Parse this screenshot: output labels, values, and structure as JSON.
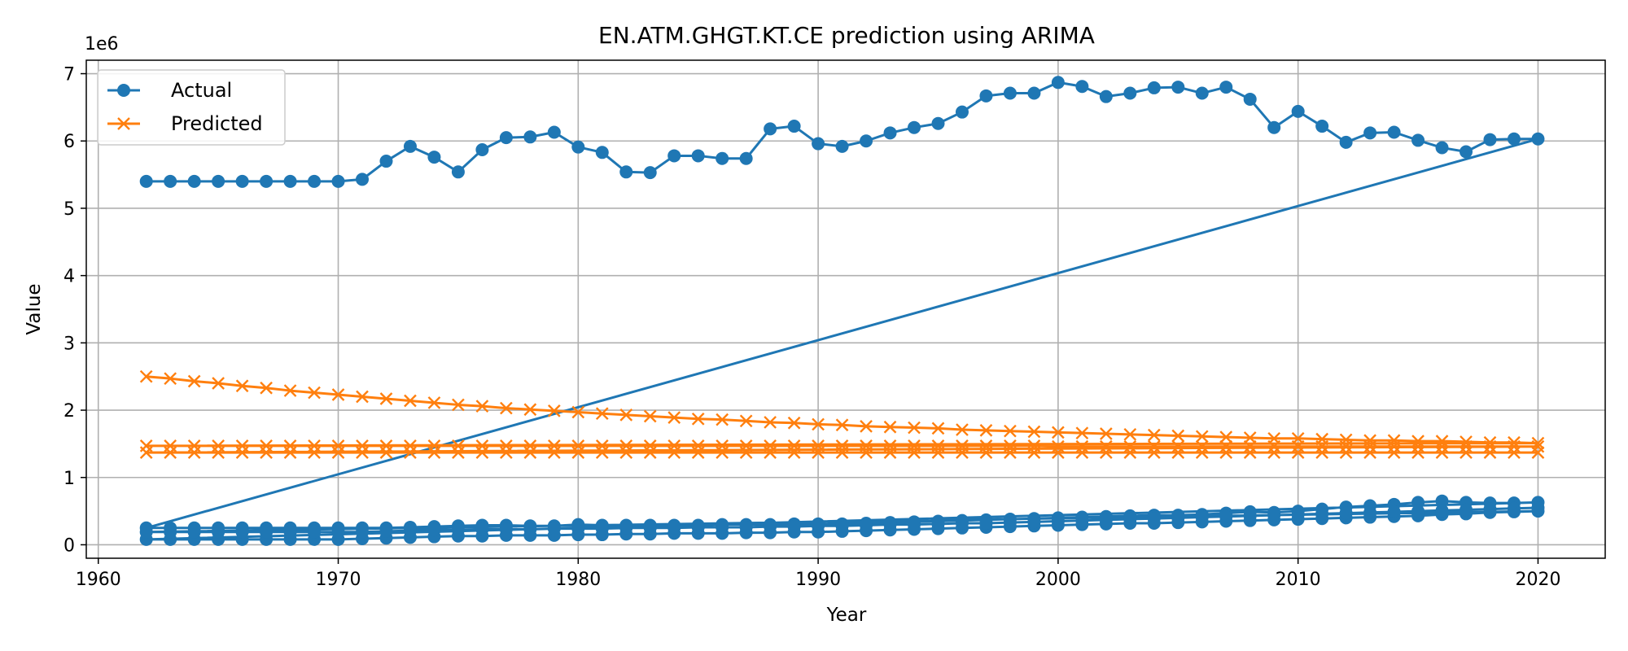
{
  "chart_data": {
    "type": "line",
    "title": "EN.ATM.GHGT.KT.CE prediction using ARIMA",
    "xlabel": "Year",
    "ylabel": "Value",
    "y_offset_label": "1e6",
    "xlim": [
      1959.5,
      2022.8
    ],
    "ylim": [
      -0.2,
      7.2
    ],
    "y_scale_note": "values in units of 1e6",
    "x_ticks": [
      1960,
      1970,
      1980,
      1990,
      2000,
      2010,
      2020
    ],
    "y_ticks": [
      0,
      1,
      2,
      3,
      4,
      5,
      6,
      7
    ],
    "grid": true,
    "legend_position": "upper-left",
    "colors": {
      "actual": "#1f77b4",
      "predicted": "#ff7f0e"
    },
    "series": [
      {
        "name": "Actual",
        "marker": "circle",
        "x": [
          1962,
          1963,
          1964,
          1965,
          1966,
          1967,
          1968,
          1969,
          1970,
          1971,
          1972,
          1973,
          1974,
          1975,
          1976,
          1977,
          1978,
          1979,
          1980,
          1981,
          1982,
          1983,
          1984,
          1985,
          1986,
          1987,
          1988,
          1989,
          1990,
          1991,
          1992,
          1993,
          1994,
          1995,
          1996,
          1997,
          1998,
          1999,
          2000,
          2001,
          2002,
          2003,
          2004,
          2005,
          2006,
          2007,
          2008,
          2009,
          2010,
          2011,
          2012,
          2013,
          2014,
          2015,
          2016,
          2017,
          2018,
          2019,
          2020,
          1962,
          1963,
          1964,
          1965,
          1966,
          1967,
          1968,
          1969,
          1970,
          1971,
          1972,
          1973,
          1974,
          1975,
          1976,
          1977,
          1978,
          1979,
          1980,
          1981,
          1982,
          1983,
          1984,
          1985,
          1986,
          1987,
          1988,
          1989,
          1990,
          1991,
          1992,
          1993,
          1994,
          1995,
          1996,
          1997,
          1998,
          1999,
          2000,
          2001,
          2002,
          2003,
          2004,
          2005,
          2006,
          2007,
          2008,
          2009,
          2010,
          2011,
          2012,
          2013,
          2014,
          2015,
          2016,
          2017,
          2018,
          2019,
          2020,
          1962,
          1963,
          1964,
          1965,
          1966,
          1967,
          1968,
          1969,
          1970,
          1971,
          1972,
          1973,
          1974,
          1975,
          1976,
          1977,
          1978,
          1979,
          1980,
          1981,
          1982,
          1983,
          1984,
          1985,
          1986,
          1987,
          1988,
          1989,
          1990,
          1991,
          1992,
          1993,
          1994,
          1995,
          1996,
          1997,
          1998,
          1999,
          2000,
          2001,
          2002,
          2003,
          2004,
          2005,
          2006,
          2007,
          2008,
          2009,
          2010,
          2011,
          2012,
          2013,
          2014,
          2015,
          2016,
          2017,
          2018,
          2019,
          2020,
          1962,
          1963,
          1964,
          1965,
          1966,
          1967,
          1968,
          1969,
          1970,
          1971,
          1972,
          1973,
          1974,
          1975,
          1976,
          1977,
          1978,
          1979,
          1980,
          1981,
          1982,
          1983,
          1984,
          1985,
          1986,
          1987,
          1988,
          1989,
          1990,
          1991,
          1992,
          1993,
          1994,
          1995,
          1996,
          1997,
          1998,
          1999,
          2000,
          2001,
          2002,
          2003,
          2004,
          2005,
          2006,
          2007,
          2008,
          2009,
          2010,
          2011,
          2012,
          2013,
          2014,
          2015,
          2016,
          2017,
          2018,
          2019,
          2020
        ],
        "y": [
          5.4,
          5.4,
          5.4,
          5.4,
          5.4,
          5.4,
          5.4,
          5.4,
          5.4,
          5.43,
          5.7,
          5.92,
          5.76,
          5.54,
          5.87,
          6.05,
          6.06,
          6.13,
          5.91,
          5.83,
          5.54,
          5.53,
          5.78,
          5.78,
          5.74,
          5.74,
          6.18,
          6.22,
          5.96,
          5.92,
          6.0,
          6.12,
          6.2,
          6.26,
          6.43,
          6.67,
          6.71,
          6.71,
          6.87,
          6.81,
          6.66,
          6.71,
          6.79,
          6.8,
          6.71,
          6.8,
          6.62,
          6.2,
          6.44,
          6.22,
          5.98,
          6.12,
          6.13,
          6.01,
          5.9,
          5.84,
          6.02,
          6.03,
          6.03,
          0.25,
          0.25,
          0.25,
          0.25,
          0.25,
          0.25,
          0.25,
          0.25,
          0.25,
          0.25,
          0.25,
          0.26,
          0.27,
          0.28,
          0.29,
          0.29,
          0.28,
          0.28,
          0.3,
          0.29,
          0.29,
          0.29,
          0.29,
          0.29,
          0.3,
          0.3,
          0.3,
          0.31,
          0.31,
          0.31,
          0.32,
          0.33,
          0.34,
          0.35,
          0.36,
          0.37,
          0.38,
          0.39,
          0.4,
          0.41,
          0.42,
          0.43,
          0.44,
          0.44,
          0.45,
          0.47,
          0.49,
          0.48,
          0.5,
          0.53,
          0.56,
          0.58,
          0.6,
          0.63,
          0.65,
          0.63,
          0.62,
          0.62,
          0.63,
          0.08,
          0.08,
          0.08,
          0.08,
          0.08,
          0.08,
          0.08,
          0.08,
          0.08,
          0.09,
          0.1,
          0.11,
          0.12,
          0.13,
          0.13,
          0.14,
          0.14,
          0.14,
          0.15,
          0.15,
          0.16,
          0.16,
          0.17,
          0.17,
          0.17,
          0.18,
          0.18,
          0.19,
          0.19,
          0.2,
          0.21,
          0.22,
          0.23,
          0.24,
          0.25,
          0.26,
          0.27,
          0.28,
          0.29,
          0.3,
          0.31,
          0.32,
          0.32,
          0.33,
          0.34,
          0.35,
          0.36,
          0.37,
          0.38,
          0.39,
          0.4,
          0.41,
          0.42,
          0.43,
          0.45,
          0.46,
          0.48,
          0.49,
          0.5,
          0.19,
          0.19,
          0.19,
          0.19,
          0.19,
          0.19,
          0.19,
          0.19,
          0.19,
          0.19,
          0.2,
          0.21,
          0.22,
          0.22,
          0.23,
          0.23,
          0.23,
          0.24,
          0.24,
          0.24,
          0.25,
          0.25,
          0.25,
          0.26,
          0.26,
          0.26,
          0.27,
          0.27,
          0.28,
          0.28,
          0.29,
          0.3,
          0.3,
          0.31,
          0.32,
          0.32,
          0.33,
          0.34,
          0.35,
          0.36,
          0.37,
          0.38,
          0.39,
          0.4,
          0.41,
          0.42,
          0.43,
          0.44,
          0.45,
          0.46,
          0.47,
          0.48,
          0.49,
          0.5,
          0.51,
          0.52,
          0.53,
          0.54,
          0.55
        ]
      },
      {
        "name": "Predicted",
        "marker": "x",
        "x": [
          1962,
          1963,
          1964,
          1965,
          1966,
          1967,
          1968,
          1969,
          1970,
          1971,
          1972,
          1973,
          1974,
          1975,
          1976,
          1977,
          1978,
          1979,
          1980,
          1981,
          1982,
          1983,
          1984,
          1985,
          1986,
          1987,
          1988,
          1989,
          1990,
          1991,
          1992,
          1993,
          1994,
          1995,
          1996,
          1997,
          1998,
          1999,
          2000,
          2001,
          2002,
          2003,
          2004,
          2005,
          2006,
          2007,
          2008,
          2009,
          2010,
          2011,
          2012,
          2013,
          2014,
          2015,
          2016,
          2017,
          2018,
          2019,
          2020,
          1962,
          1963,
          1964,
          1965,
          1966,
          1967,
          1968,
          1969,
          1970,
          1971,
          1972,
          1973,
          1974,
          1975,
          1976,
          1977,
          1978,
          1979,
          1980,
          1981,
          1982,
          1983,
          1984,
          1985,
          1986,
          1987,
          1988,
          1989,
          1990,
          1991,
          1992,
          1993,
          1994,
          1995,
          1996,
          1997,
          1998,
          1999,
          2000,
          2001,
          2002,
          2003,
          2004,
          2005,
          2006,
          2007,
          2008,
          2009,
          2010,
          2011,
          2012,
          2013,
          2014,
          2015,
          2016,
          2017,
          2018,
          2019,
          2020,
          1962,
          1963,
          1964,
          1965,
          1966,
          1967,
          1968,
          1969,
          1970,
          1971,
          1972,
          1973,
          1974,
          1975,
          1976,
          1977,
          1978,
          1979,
          1980,
          1981,
          1982,
          1983,
          1984,
          1985,
          1986,
          1987,
          1988,
          1989,
          1990,
          1991,
          1992,
          1993,
          1994,
          1995,
          1996,
          1997,
          1998,
          1999,
          2000,
          2001,
          2002,
          2003,
          2004,
          2005,
          2006,
          2007,
          2008,
          2009,
          2010,
          2011,
          2012,
          2013,
          2014,
          2015,
          2016,
          2017,
          2018,
          2019,
          2020
        ],
        "y": [
          2.5,
          2.47,
          2.43,
          2.4,
          2.36,
          2.33,
          2.29,
          2.26,
          2.23,
          2.2,
          2.17,
          2.14,
          2.11,
          2.08,
          2.06,
          2.03,
          2.01,
          1.99,
          1.97,
          1.95,
          1.93,
          1.91,
          1.89,
          1.87,
          1.86,
          1.84,
          1.82,
          1.81,
          1.79,
          1.78,
          1.76,
          1.75,
          1.74,
          1.73,
          1.71,
          1.7,
          1.69,
          1.68,
          1.67,
          1.66,
          1.65,
          1.64,
          1.63,
          1.62,
          1.61,
          1.6,
          1.59,
          1.58,
          1.58,
          1.57,
          1.56,
          1.55,
          1.55,
          1.54,
          1.54,
          1.53,
          1.52,
          1.52,
          1.51,
          1.47,
          1.47,
          1.47,
          1.47,
          1.47,
          1.47,
          1.47,
          1.47,
          1.47,
          1.47,
          1.47,
          1.47,
          1.47,
          1.47,
          1.47,
          1.47,
          1.47,
          1.47,
          1.47,
          1.47,
          1.47,
          1.47,
          1.47,
          1.47,
          1.47,
          1.47,
          1.47,
          1.47,
          1.47,
          1.47,
          1.47,
          1.47,
          1.47,
          1.47,
          1.47,
          1.47,
          1.47,
          1.47,
          1.46,
          1.46,
          1.46,
          1.46,
          1.46,
          1.46,
          1.46,
          1.46,
          1.46,
          1.46,
          1.46,
          1.46,
          1.46,
          1.46,
          1.46,
          1.46,
          1.46,
          1.46,
          1.46,
          1.46,
          1.46,
          1.37,
          1.37,
          1.37,
          1.37,
          1.37,
          1.37,
          1.37,
          1.37,
          1.37,
          1.37,
          1.37,
          1.37,
          1.37,
          1.37,
          1.37,
          1.37,
          1.37,
          1.37,
          1.37,
          1.37,
          1.37,
          1.37,
          1.37,
          1.37,
          1.37,
          1.37,
          1.37,
          1.37,
          1.37,
          1.37,
          1.37,
          1.37,
          1.37,
          1.37,
          1.37,
          1.37,
          1.37,
          1.37,
          1.37,
          1.37,
          1.37,
          1.37,
          1.37,
          1.37,
          1.37,
          1.37,
          1.37,
          1.37,
          1.37,
          1.37,
          1.37,
          1.37,
          1.37,
          1.37,
          1.37,
          1.37,
          1.37,
          1.37,
          1.37
        ]
      }
    ]
  }
}
